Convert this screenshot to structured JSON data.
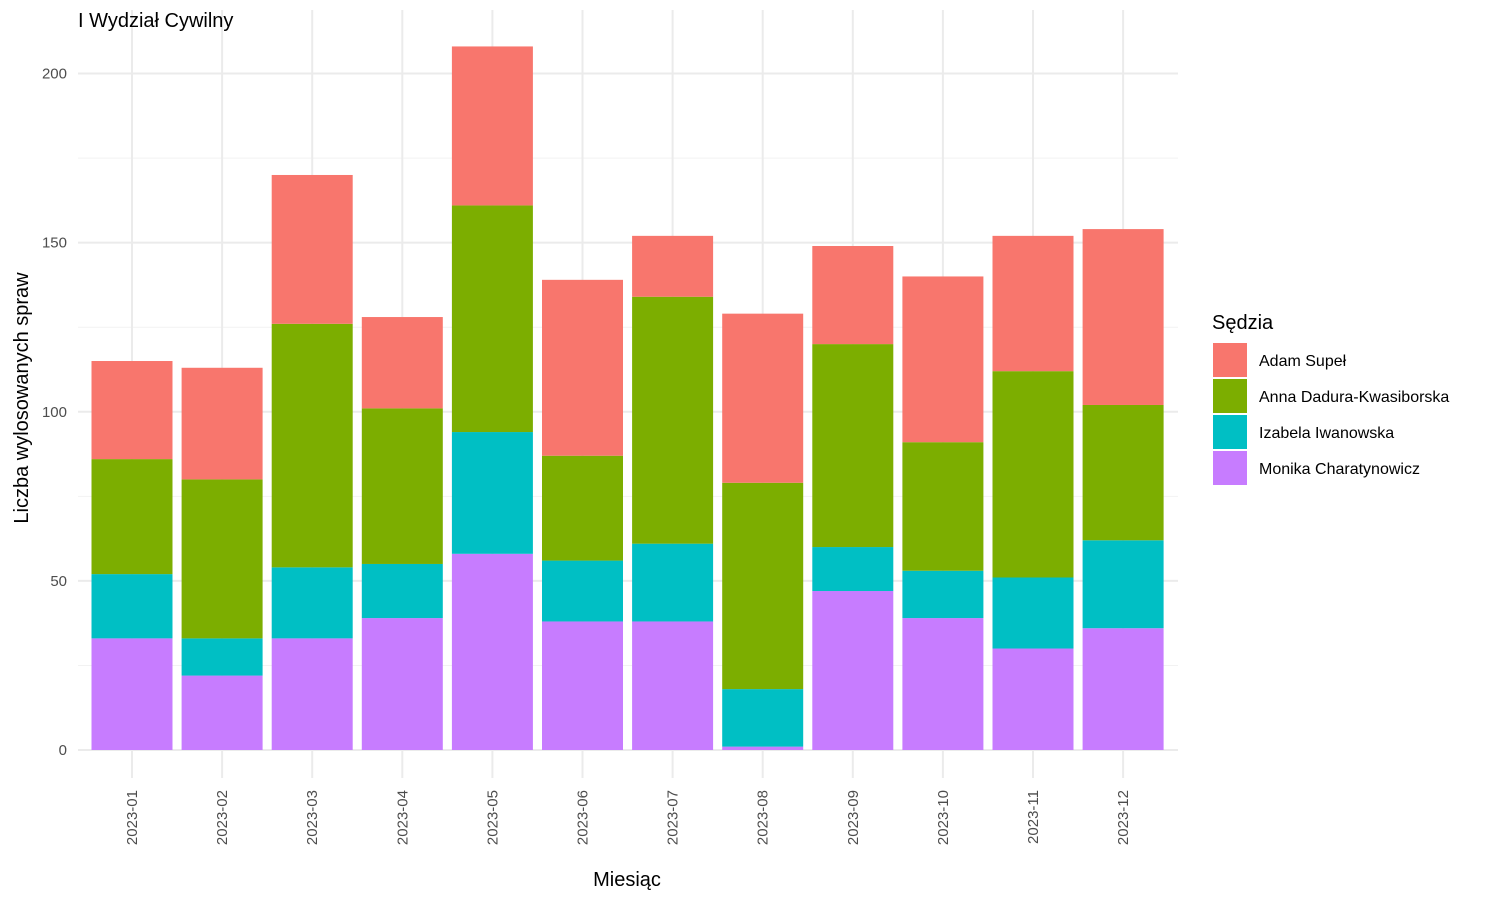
{
  "chart_data": {
    "type": "bar",
    "stacked": true,
    "title": "I Wydział Cywilny",
    "xlabel": "Miesiąc",
    "ylabel": "Liczba wylosowanych spraw",
    "ylim": [
      0,
      215
    ],
    "yticks": [
      0,
      50,
      100,
      150,
      200
    ],
    "grid": true,
    "legend_title": "Sędzia",
    "legend_position": "right",
    "categories": [
      "2023-01",
      "2023-02",
      "2023-03",
      "2023-04",
      "2023-05",
      "2023-06",
      "2023-07",
      "2023-08",
      "2023-09",
      "2023-10",
      "2023-11",
      "2023-12"
    ],
    "series": [
      {
        "name": "Monika Charatynowicz",
        "color": "#C77CFF",
        "values": [
          33,
          22,
          33,
          39,
          58,
          38,
          38,
          1,
          47,
          39,
          30,
          36
        ]
      },
      {
        "name": "Izabela Iwanowska",
        "color": "#00BFC4",
        "values": [
          19,
          11,
          21,
          16,
          36,
          18,
          23,
          17,
          13,
          14,
          21,
          26
        ]
      },
      {
        "name": "Anna Dadura-Kwasiborska",
        "color": "#7CAE00",
        "values": [
          34,
          47,
          72,
          46,
          67,
          31,
          73,
          61,
          60,
          38,
          61,
          40
        ]
      },
      {
        "name": "Adam Supeł",
        "color": "#F8766D",
        "values": [
          29,
          33,
          44,
          27,
          47,
          52,
          18,
          50,
          29,
          49,
          40,
          52
        ]
      }
    ],
    "legend_order": [
      "Adam Supeł",
      "Anna Dadura-Kwasiborska",
      "Izabela Iwanowska",
      "Monika Charatynowicz"
    ]
  }
}
